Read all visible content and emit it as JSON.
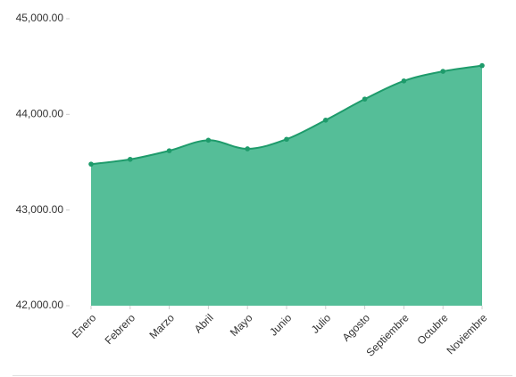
{
  "chart_data": {
    "type": "area",
    "categories": [
      "Enero",
      "Febrero",
      "Marzo",
      "Abril",
      "Mayo",
      "Junio",
      "Julio",
      "Agosto",
      "Septiembre",
      "Octubre",
      "Noviembre"
    ],
    "values": [
      43480,
      43530,
      43620,
      43730,
      43640,
      43740,
      43940,
      44160,
      44350,
      44450,
      44510
    ],
    "color": "#55be98",
    "line_color": "#1e9b6b",
    "ylim": [
      42000,
      45000
    ],
    "yticks": [
      {
        "value": 42000,
        "label": "42,000.00"
      },
      {
        "value": 43000,
        "label": "43,000.00"
      },
      {
        "value": 44000,
        "label": "44,000.00"
      },
      {
        "value": 45000,
        "label": "45,000.00"
      }
    ],
    "grid": false
  }
}
